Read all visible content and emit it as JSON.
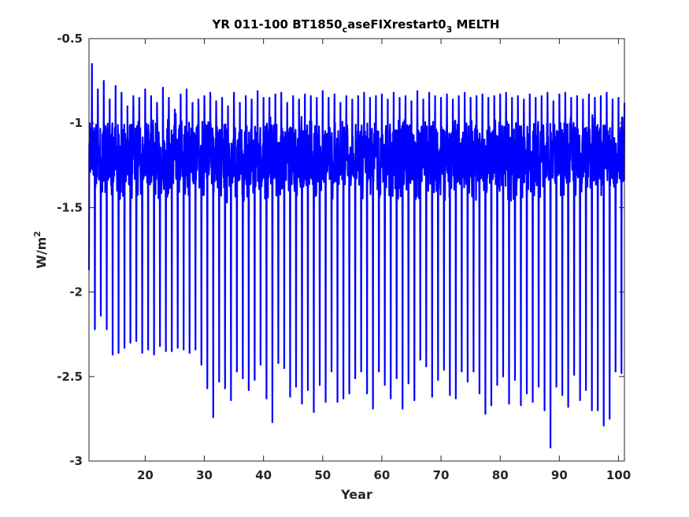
{
  "chart_data": {
    "type": "line",
    "title_parts": {
      "main": "YR 011-100 BT1850",
      "sub1": "c",
      "mid": "aseFIXrestart0",
      "sub2": "3",
      "tail": " MELTH"
    },
    "xlabel": "Year",
    "ylabel": {
      "base": "W/m",
      "sup": "2"
    },
    "xlim": [
      10.5,
      101
    ],
    "ylim": [
      -3,
      -0.5
    ],
    "xticks": [
      20,
      30,
      40,
      50,
      60,
      70,
      80,
      90,
      100
    ],
    "yticks": [
      -0.5,
      -1,
      -1.5,
      -2,
      -2.5,
      -3
    ],
    "ytick_labels": [
      "-0.5",
      "-1",
      "-1.5",
      "-2",
      "-2.5",
      "-3"
    ],
    "grid": false,
    "line_color": "#0000ff",
    "series": [
      {
        "x_start": 10.5,
        "x_end": 101,
        "samples_per_year": 12,
        "annual_minima": [
          -1.87,
          -2.22,
          -2.14,
          -2.22,
          -2.37,
          -2.36,
          -2.33,
          -2.3,
          -2.29,
          -2.36,
          -2.34,
          -2.37,
          -2.32,
          -2.35,
          -2.35,
          -2.33,
          -2.34,
          -2.36,
          -2.34,
          -2.43,
          -2.57,
          -2.74,
          -2.53,
          -2.57,
          -2.64,
          -2.47,
          -2.51,
          -2.58,
          -2.52,
          -2.43,
          -2.63,
          -2.77,
          -2.42,
          -2.45,
          -2.62,
          -2.56,
          -2.66,
          -2.58,
          -2.71,
          -2.55,
          -2.65,
          -2.47,
          -2.65,
          -2.63,
          -2.6,
          -2.51,
          -2.47,
          -2.6,
          -2.69,
          -2.47,
          -2.55,
          -2.63,
          -2.51,
          -2.69,
          -2.54,
          -2.64,
          -2.4,
          -2.44,
          -2.62,
          -2.52,
          -2.46,
          -2.61,
          -2.63,
          -2.47,
          -2.53,
          -2.47,
          -2.6,
          -2.72,
          -2.67,
          -2.55,
          -2.5,
          -2.66,
          -2.52,
          -2.67,
          -2.6,
          -2.65,
          -2.56,
          -2.7,
          -2.92,
          -2.56,
          -2.61,
          -2.68,
          -2.49,
          -2.64,
          -2.58,
          -2.7,
          -2.7,
          -2.79,
          -2.75,
          -2.47,
          -2.48
        ],
        "annual_maxima": [
          -0.65,
          -0.8,
          -0.75,
          -0.86,
          -0.78,
          -0.82,
          -0.9,
          -0.84,
          -0.85,
          -0.8,
          -0.84,
          -0.88,
          -0.79,
          -0.85,
          -0.92,
          -0.83,
          -0.8,
          -0.88,
          -0.86,
          -0.84,
          -0.82,
          -0.87,
          -0.85,
          -0.9,
          -0.82,
          -0.88,
          -0.84,
          -0.86,
          -0.81,
          -0.85,
          -0.85,
          -0.83,
          -0.82,
          -0.88,
          -0.84,
          -0.86,
          -0.83,
          -0.84,
          -0.85,
          -0.81,
          -0.85,
          -0.83,
          -0.88,
          -0.84,
          -0.86,
          -0.84,
          -0.82,
          -0.85,
          -0.84,
          -0.83,
          -0.86,
          -0.82,
          -0.85,
          -0.84,
          -0.87,
          -0.81,
          -0.86,
          -0.82,
          -0.84,
          -0.85,
          -0.83,
          -0.86,
          -0.84,
          -0.82,
          -0.85,
          -0.84,
          -0.83,
          -0.85,
          -0.84,
          -0.83,
          -0.82,
          -0.85,
          -0.84,
          -0.86,
          -0.83,
          -0.85,
          -0.84,
          -0.82,
          -0.87,
          -0.83,
          -0.82,
          -0.85,
          -0.84,
          -0.86,
          -0.83,
          -0.85,
          -0.84,
          -0.82,
          -0.86,
          -0.85,
          -0.88
        ],
        "typical_band": [
          -1.4,
          -1.0
        ]
      }
    ]
  }
}
